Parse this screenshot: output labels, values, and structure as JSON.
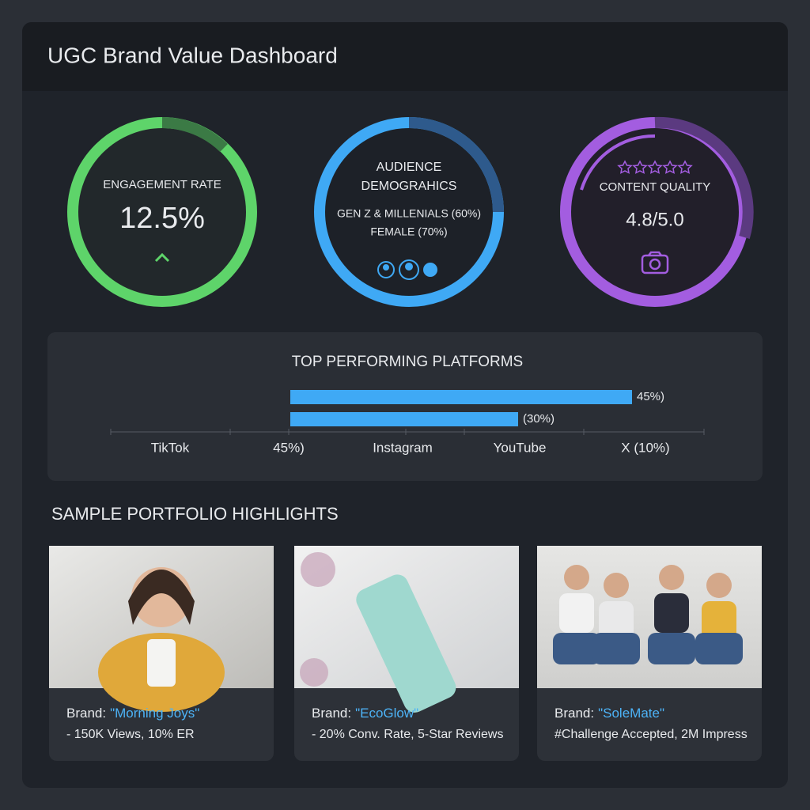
{
  "header": {
    "title": "UGC Brand Value Dashboard"
  },
  "metrics": [
    {
      "label": "ENGAGEMENT RATE",
      "value": "12.5%"
    },
    {
      "label": "AUDIENCE DEMOGRAHICS",
      "lines": [
        "GEN Z & MILLENIALS (60%)",
        "FEMALE (70%)"
      ]
    },
    {
      "label": "CONTENT QUALITY",
      "value": "4.8/5.0"
    }
  ],
  "platforms": {
    "title": "TOP PERFORMING PLATFORMS",
    "bars": [
      {
        "value": 45,
        "label": "45%)"
      },
      {
        "value": 30,
        "label": "(30%)"
      }
    ],
    "axis_labels": [
      "TikTok",
      "45%)",
      "Instagram",
      "YouTube",
      "X (10%)"
    ]
  },
  "portfolio": {
    "title": "SAMPLE PORTFOLIO HIGHLIGHTS",
    "items": [
      {
        "prefix": "Brand:",
        "brand": "\"Morning Joys\"",
        "detail": "- 150K Views, 10% ER"
      },
      {
        "prefix": "Brand:",
        "brand": "\"EcoGlow\"",
        "detail": "- 20% Conv. Rate, 5-Star Reviews"
      },
      {
        "prefix": "Brand:",
        "brand": "\"SoleMate\"",
        "detail": "#Challenge Accepted, 2M Impress"
      }
    ]
  }
}
